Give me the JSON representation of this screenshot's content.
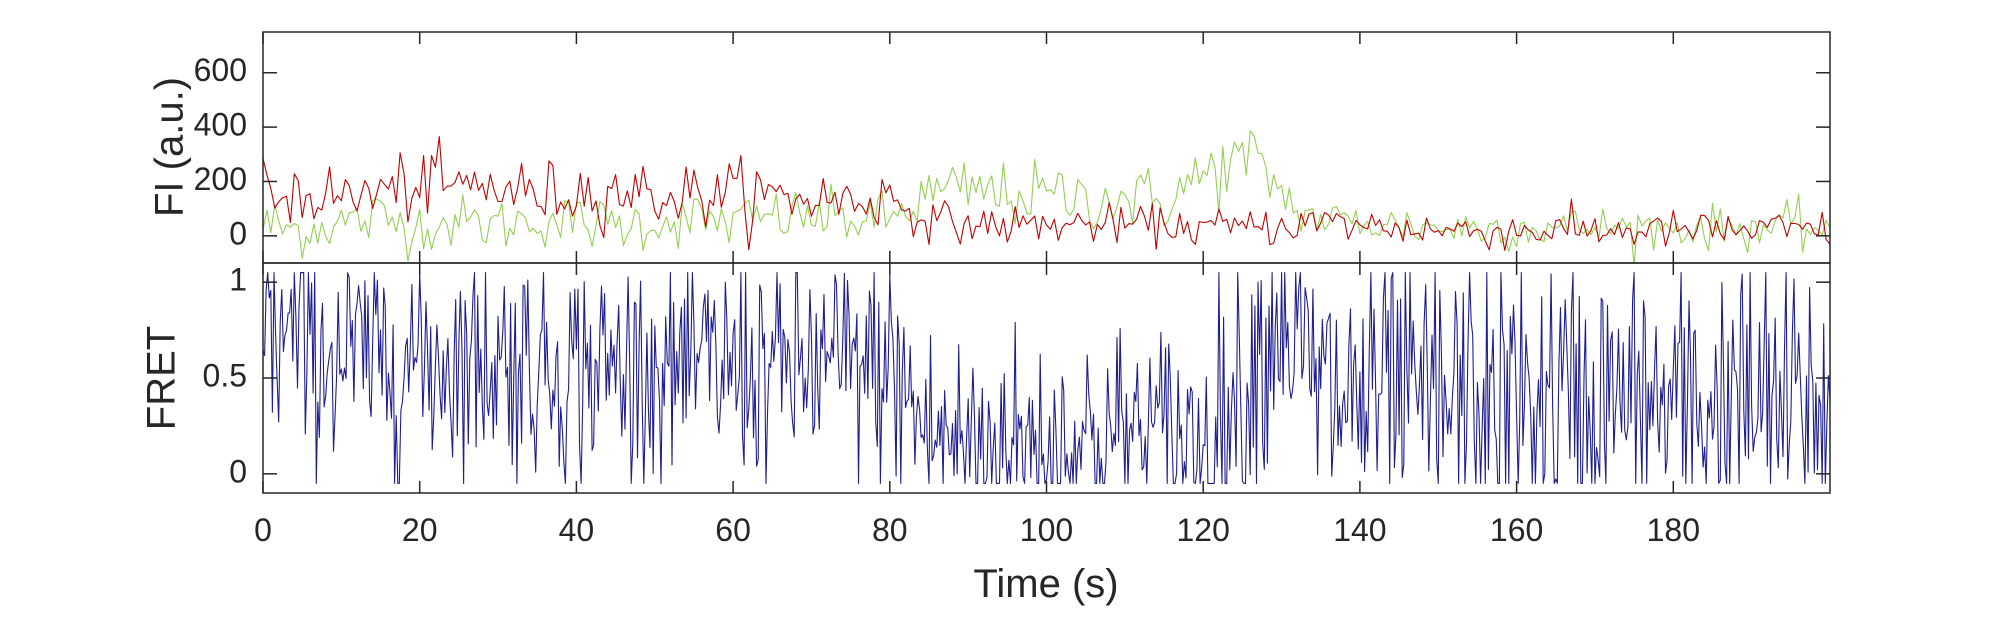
{
  "chart_data": [
    {
      "type": "line",
      "ylabel": "FI (a.u.)",
      "xlim": [
        0,
        200
      ],
      "ylim": [
        -100,
        750
      ],
      "yticks": [
        0,
        200,
        400,
        600
      ],
      "ytick_labels": [
        "0",
        "200",
        "400",
        "600"
      ],
      "grid": false,
      "series": [
        {
          "color": "#92D050",
          "sample_dt": 0.5,
          "x": [
            0,
            5,
            10,
            15,
            20,
            25,
            30,
            35,
            40,
            45,
            50,
            55,
            60,
            65,
            70,
            75,
            80,
            85,
            90,
            95,
            100,
            105,
            110,
            115,
            120,
            123,
            126,
            129,
            132,
            135,
            140,
            145,
            150,
            155,
            160,
            165,
            170,
            175,
            180,
            185,
            190,
            195,
            200
          ],
          "y": [
            40,
            20,
            50,
            60,
            40,
            50,
            40,
            60,
            50,
            40,
            50,
            60,
            50,
            70,
            70,
            60,
            60,
            150,
            170,
            150,
            150,
            140,
            140,
            130,
            220,
            260,
            280,
            200,
            90,
            60,
            50,
            40,
            30,
            30,
            30,
            30,
            30,
            30,
            30,
            30,
            30,
            30,
            30
          ],
          "noise": [
            60,
            50,
            50,
            60,
            50,
            50,
            50,
            50,
            50,
            50,
            50,
            50,
            50,
            50,
            50,
            50,
            50,
            60,
            60,
            60,
            60,
            60,
            60,
            60,
            70,
            70,
            70,
            60,
            40,
            40,
            40,
            40,
            40,
            40,
            40,
            40,
            40,
            40,
            40,
            40,
            40,
            45,
            45
          ]
        },
        {
          "color": "#C00000",
          "sample_dt": 0.5,
          "x": [
            0,
            5,
            10,
            15,
            20,
            25,
            30,
            35,
            40,
            45,
            50,
            55,
            60,
            65,
            70,
            75,
            80,
            85,
            90,
            95,
            100,
            105,
            110,
            115,
            120,
            125,
            130,
            135,
            140,
            145,
            150,
            155,
            160,
            165,
            170,
            175,
            180,
            185,
            190,
            195,
            200
          ],
          "y": [
            150,
            160,
            140,
            160,
            190,
            180,
            180,
            150,
            160,
            170,
            150,
            150,
            160,
            140,
            140,
            130,
            140,
            60,
            40,
            40,
            40,
            40,
            40,
            40,
            30,
            30,
            40,
            50,
            40,
            30,
            20,
            20,
            20,
            20,
            20,
            20,
            20,
            20,
            20,
            20,
            20
          ],
          "noise": [
            60,
            60,
            60,
            60,
            65,
            65,
            60,
            60,
            60,
            60,
            60,
            60,
            60,
            60,
            55,
            55,
            55,
            35,
            35,
            35,
            35,
            35,
            35,
            35,
            35,
            35,
            35,
            35,
            35,
            35,
            35,
            35,
            35,
            35,
            35,
            35,
            35,
            35,
            35,
            35,
            35
          ]
        }
      ]
    },
    {
      "type": "line",
      "xlabel": "Time (s)",
      "ylabel": "FRET",
      "xlim": [
        0,
        200
      ],
      "ylim": [
        -0.1,
        1.1
      ],
      "xticks": [
        0,
        20,
        40,
        60,
        80,
        100,
        120,
        140,
        160,
        180
      ],
      "xtick_labels": [
        "0",
        "20",
        "40",
        "60",
        "80",
        "100",
        "120",
        "140",
        "160",
        "180"
      ],
      "yticks": [
        0,
        0.5,
        1
      ],
      "ytick_labels": [
        "0",
        "0.5",
        "1"
      ],
      "grid": false,
      "series": [
        {
          "color": "#1F1F8F",
          "sample_dt": 0.2,
          "x": [
            0,
            10,
            20,
            30,
            40,
            50,
            60,
            70,
            80,
            85,
            90,
            100,
            110,
            115,
            120,
            125,
            130,
            135,
            140,
            150,
            160,
            170,
            180,
            190,
            200
          ],
          "y": [
            0.75,
            0.6,
            0.6,
            0.6,
            0.55,
            0.55,
            0.55,
            0.55,
            0.55,
            0.2,
            0.15,
            0.15,
            0.2,
            0.2,
            0.15,
            0.45,
            0.85,
            0.4,
            0.4,
            0.35,
            0.35,
            0.35,
            0.35,
            0.35,
            0.35
          ],
          "noise": [
            0.3,
            0.3,
            0.3,
            0.3,
            0.3,
            0.3,
            0.3,
            0.3,
            0.3,
            0.3,
            0.3,
            0.3,
            0.3,
            0.3,
            0.3,
            0.4,
            0.3,
            0.4,
            0.4,
            0.4,
            0.4,
            0.4,
            0.4,
            0.4,
            0.4
          ]
        }
      ]
    }
  ]
}
